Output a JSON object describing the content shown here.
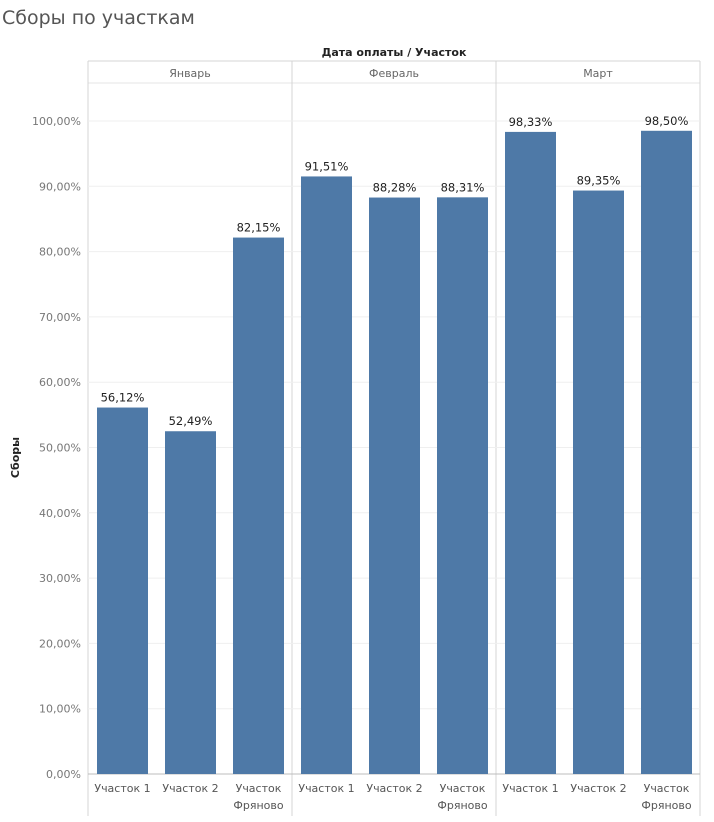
{
  "chart_data": {
    "type": "bar",
    "title": "Сборы по участкам",
    "column_header": "Дата оплаты  /  Участок",
    "ylabel": "Сборы",
    "ylim": [
      0,
      100
    ],
    "yticks": [
      "0,00%",
      "10,00%",
      "20,00%",
      "30,00%",
      "40,00%",
      "50,00%",
      "60,00%",
      "70,00%",
      "80,00%",
      "90,00%",
      "100,00%"
    ],
    "grid": true,
    "bar_color": "#4e79a7",
    "groups": [
      {
        "name": "Январь",
        "bars": [
          {
            "category": [
              "Участок 1"
            ],
            "value": 56.12,
            "label": "56,12%"
          },
          {
            "category": [
              "Участок 2"
            ],
            "value": 52.49,
            "label": "52,49%"
          },
          {
            "category": [
              "Участок",
              "Фряново"
            ],
            "value": 82.15,
            "label": "82,15%"
          }
        ]
      },
      {
        "name": "Февраль",
        "bars": [
          {
            "category": [
              "Участок 1"
            ],
            "value": 91.51,
            "label": "91,51%"
          },
          {
            "category": [
              "Участок 2"
            ],
            "value": 88.28,
            "label": "88,28%"
          },
          {
            "category": [
              "Участок",
              "Фряново"
            ],
            "value": 88.31,
            "label": "88,31%"
          }
        ]
      },
      {
        "name": "Март",
        "bars": [
          {
            "category": [
              "Участок 1"
            ],
            "value": 98.33,
            "label": "98,33%"
          },
          {
            "category": [
              "Участок 2"
            ],
            "value": 89.35,
            "label": "89,35%"
          },
          {
            "category": [
              "Участок",
              "Фряново"
            ],
            "value": 98.5,
            "label": "98,50%"
          }
        ]
      }
    ]
  }
}
